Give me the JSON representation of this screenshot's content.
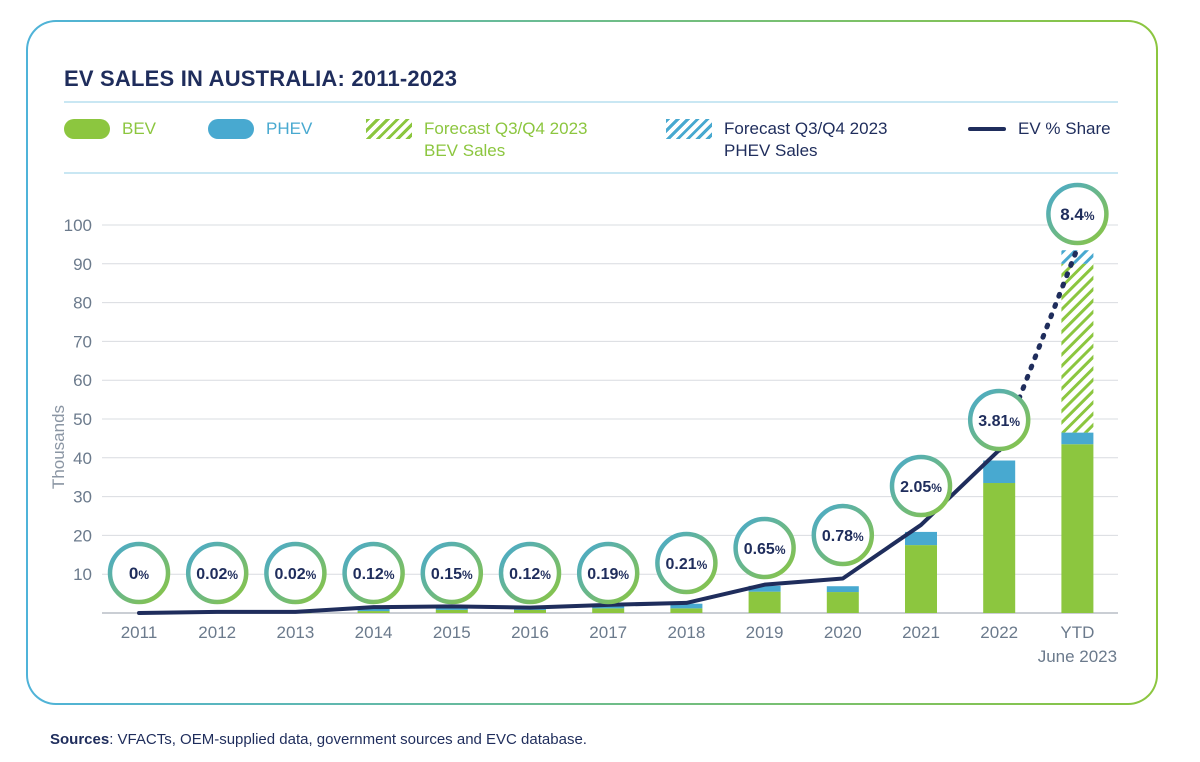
{
  "title": "EV SALES IN AUSTRALIA: 2011-2023",
  "legend": {
    "bev": "BEV",
    "phev": "PHEV",
    "forecast_bev": "Forecast Q3/Q4 2023\nBEV Sales",
    "forecast_phev": "Forecast Q3/Q4 2023\nPHEV Sales",
    "share": "EV % Share"
  },
  "colors": {
    "bev": "#8cc63f",
    "phev": "#48a9d0",
    "line": "#1f2d5c",
    "grid": "#d9dce0",
    "axis_text": "#6b7a8c"
  },
  "sources": {
    "label": "Sources",
    "text": ": VFACTs, OEM-supplied data, government sources and EVC database."
  },
  "chart_data": {
    "type": "bar",
    "ylabel": "Thousands",
    "ylim": [
      0,
      100
    ],
    "yticks": [
      10,
      20,
      30,
      40,
      50,
      60,
      70,
      80,
      90,
      100
    ],
    "grid": true,
    "legend_position": "top",
    "categories": [
      "2011",
      "2012",
      "2013",
      "2014",
      "2015",
      "2016",
      "2017",
      "2018",
      "2019",
      "2020",
      "2021",
      "2022",
      "YTD\nJune 2023"
    ],
    "series": [
      {
        "name": "BEV",
        "values": [
          0,
          0.2,
          0.2,
          0.5,
          0.8,
          0.8,
          1.2,
          1.2,
          5.5,
          5.4,
          17.5,
          33.5,
          43.5
        ]
      },
      {
        "name": "PHEV",
        "values": [
          0,
          0.1,
          0.1,
          0.8,
          0.9,
          0.9,
          1.1,
          1.2,
          1.5,
          1.5,
          3.4,
          5.8,
          3.0
        ]
      },
      {
        "name": "Forecast Q3/Q4 2023 BEV Sales",
        "values": [
          0,
          0,
          0,
          0,
          0,
          0,
          0,
          0,
          0,
          0,
          0,
          0,
          43.5
        ]
      },
      {
        "name": "Forecast Q3/Q4 2023 PHEV Sales",
        "values": [
          0,
          0,
          0,
          0,
          0,
          0,
          0,
          0,
          0,
          0,
          0,
          0,
          3.5
        ]
      }
    ],
    "share_labels": [
      "0",
      "0.02",
      "0.02",
      "0.12",
      "0.15",
      "0.12",
      "0.19",
      "0.21",
      "0.65",
      "0.78",
      "2.05",
      "3.81",
      "8.4"
    ],
    "share_line": {
      "name": "EV % Share",
      "values_thousands_scale": [
        0,
        0.3,
        0.3,
        1.5,
        1.7,
        1.4,
        2.1,
        2.6,
        7.3,
        8.9,
        22.7,
        42,
        94
      ]
    }
  }
}
